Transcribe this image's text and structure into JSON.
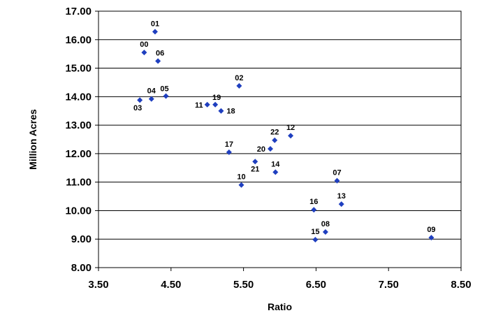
{
  "chart_data": {
    "type": "scatter",
    "title": "",
    "xlabel": "Ratio",
    "ylabel": "Million Acres",
    "xlim": [
      3.5,
      8.5
    ],
    "ylim": [
      8.0,
      17.0
    ],
    "xticks": [
      "3.50",
      "4.50",
      "5.50",
      "6.50",
      "7.50",
      "8.50"
    ],
    "yticks": [
      "8.00",
      "9.00",
      "10.00",
      "11.00",
      "12.00",
      "13.00",
      "14.00",
      "15.00",
      "16.00",
      "17.00"
    ],
    "grid": "horizontal",
    "marker_color": "#1f3fbf",
    "points": [
      {
        "label": "00",
        "x": 4.13,
        "y": 15.55
      },
      {
        "label": "01",
        "x": 4.28,
        "y": 16.28
      },
      {
        "label": "02",
        "x": 5.44,
        "y": 14.38
      },
      {
        "label": "03",
        "x": 4.07,
        "y": 13.88
      },
      {
        "label": "04",
        "x": 4.23,
        "y": 13.92
      },
      {
        "label": "05",
        "x": 4.43,
        "y": 14.02
      },
      {
        "label": "06",
        "x": 4.32,
        "y": 15.25
      },
      {
        "label": "07",
        "x": 6.79,
        "y": 11.05
      },
      {
        "label": "08",
        "x": 6.63,
        "y": 9.25
      },
      {
        "label": "09",
        "x": 8.09,
        "y": 9.05
      },
      {
        "label": "10",
        "x": 5.47,
        "y": 10.9
      },
      {
        "label": "11",
        "x": 5.0,
        "y": 13.72
      },
      {
        "label": "12",
        "x": 6.15,
        "y": 12.63
      },
      {
        "label": "13",
        "x": 6.85,
        "y": 10.23
      },
      {
        "label": "14",
        "x": 5.94,
        "y": 11.35
      },
      {
        "label": "15",
        "x": 6.49,
        "y": 8.98
      },
      {
        "label": "16",
        "x": 6.47,
        "y": 10.03
      },
      {
        "label": "17",
        "x": 5.3,
        "y": 12.05
      },
      {
        "label": "18",
        "x": 5.19,
        "y": 13.5
      },
      {
        "label": "19",
        "x": 5.11,
        "y": 13.72
      },
      {
        "label": "20",
        "x": 5.87,
        "y": 12.17
      },
      {
        "label": "21",
        "x": 5.66,
        "y": 11.72
      },
      {
        "label": "22",
        "x": 5.93,
        "y": 12.47
      }
    ]
  }
}
